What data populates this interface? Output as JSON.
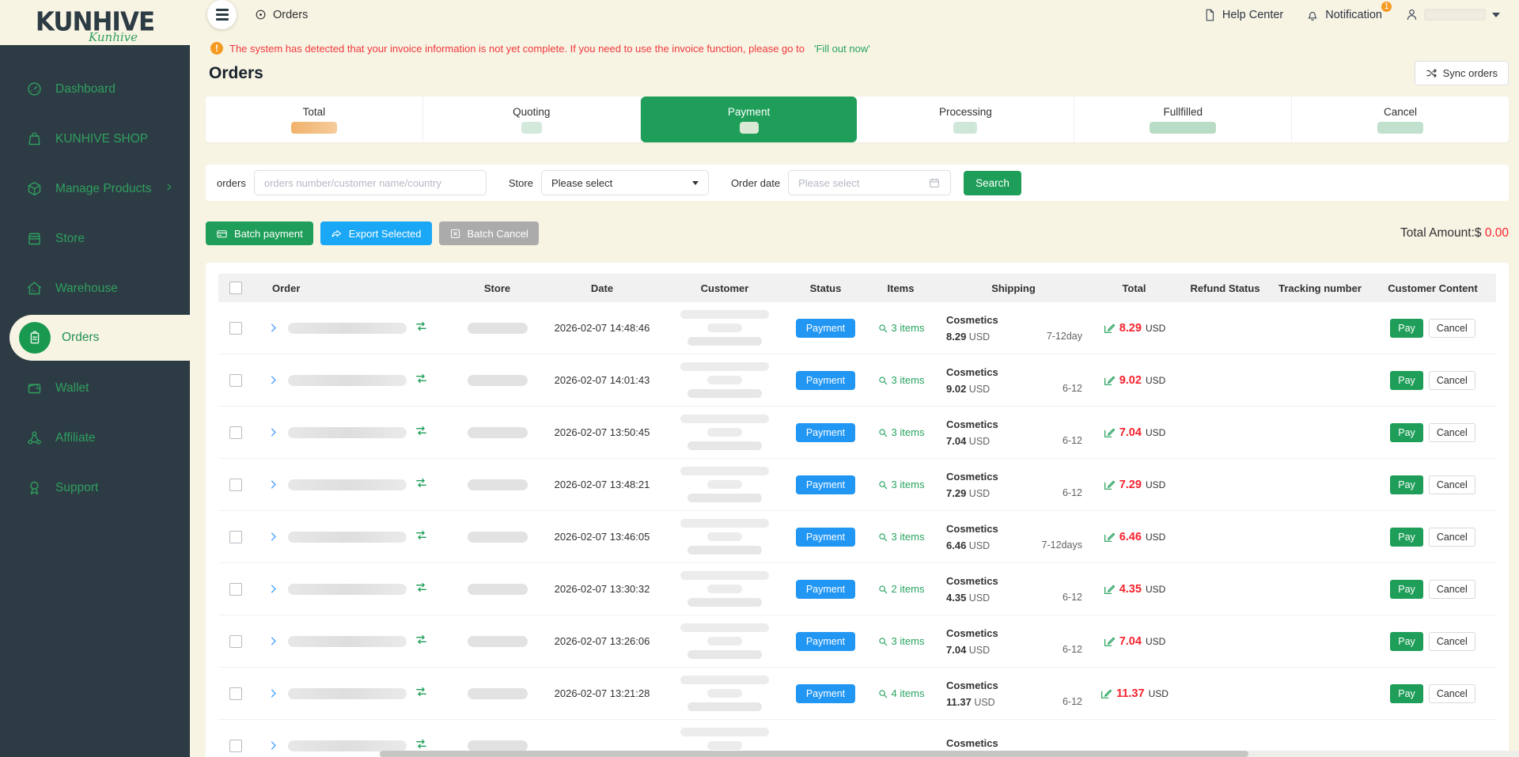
{
  "brand": {
    "logo_text": "KUNHIVE",
    "logo_script": "Kunhive"
  },
  "topbar": {
    "breadcrumb": "Orders",
    "help_center": "Help Center",
    "notification": "Notification",
    "notification_count": "1"
  },
  "sidebar": {
    "items": [
      {
        "label": "Dashboard",
        "icon": "dashboard-gauge-icon",
        "active": false
      },
      {
        "label": "KUNHIVE SHOP",
        "icon": "shop-bag-icon",
        "active": false
      },
      {
        "label": "Manage Products",
        "icon": "product-box-icon",
        "active": false,
        "has_chevron": true
      },
      {
        "label": "Store",
        "icon": "storefront-icon",
        "active": false
      },
      {
        "label": "Warehouse",
        "icon": "warehouse-icon",
        "active": false
      },
      {
        "label": "Orders",
        "icon": "orders-clipboard-icon",
        "active": true
      },
      {
        "label": "Wallet",
        "icon": "wallet-icon",
        "active": false
      },
      {
        "label": "Affiliate",
        "icon": "affiliate-network-icon",
        "active": false
      },
      {
        "label": "Support",
        "icon": "support-badge-icon",
        "active": false
      }
    ]
  },
  "notice": {
    "text": "The system has detected that your invoice information is not yet complete. If you need to use the invoice function, please go to",
    "link": "'Fill out now'"
  },
  "page": {
    "title": "Orders",
    "sync_button": "Sync orders"
  },
  "tabs": [
    {
      "label": "Total",
      "active": false,
      "count_redacted": true,
      "count_color": "#f0b26b"
    },
    {
      "label": "Quoting",
      "active": false,
      "count_redacted": true,
      "count_color": "#d3e9dc"
    },
    {
      "label": "Payment",
      "active": true,
      "count_redacted": true,
      "count_color": "#d9e9d5"
    },
    {
      "label": "Processing",
      "active": false,
      "count_redacted": true,
      "count_color": "#cfe7d9"
    },
    {
      "label": "Fullfilled",
      "active": false,
      "count_redacted": true,
      "count_color": "#b9dcc6"
    },
    {
      "label": "Cancel",
      "active": false,
      "count_redacted": true,
      "count_color": "#c2e0ce"
    }
  ],
  "filters": {
    "orders_label": "orders",
    "orders_placeholder": "orders number/customer name/country",
    "store_label": "Store",
    "store_value": "Please select",
    "date_label": "Order date",
    "date_placeholder": "Please select",
    "search_button": "Search"
  },
  "actions": {
    "batch_payment": "Batch payment",
    "export_selected": "Export Selected",
    "batch_cancel": "Batch Cancel",
    "total_amount_label": "Total Amount:$",
    "total_amount_value": "0.00"
  },
  "table": {
    "columns": [
      "Order",
      "Store",
      "Date",
      "Customer",
      "Status",
      "Items",
      "Shipping",
      "Total",
      "Refund Status",
      "Tracking number",
      "Customer Content"
    ],
    "row_actions": {
      "pay": "Pay",
      "cancel": "Cancel"
    },
    "rows": [
      {
        "date": "2026-02-07 14:48:46",
        "status": "Payment",
        "items": "3 items",
        "ship_name": "Cosmetics",
        "ship_price": "8.29",
        "ship_cur": "USD",
        "ship_eta": "7-12day",
        "total": "8.29",
        "total_cur": "USD"
      },
      {
        "date": "2026-02-07 14:01:43",
        "status": "Payment",
        "items": "3 items",
        "ship_name": "Cosmetics",
        "ship_price": "9.02",
        "ship_cur": "USD",
        "ship_eta": "6-12",
        "total": "9.02",
        "total_cur": "USD"
      },
      {
        "date": "2026-02-07 13:50:45",
        "status": "Payment",
        "items": "3 items",
        "ship_name": "Cosmetics",
        "ship_price": "7.04",
        "ship_cur": "USD",
        "ship_eta": "6-12",
        "total": "7.04",
        "total_cur": "USD"
      },
      {
        "date": "2026-02-07 13:48:21",
        "status": "Payment",
        "items": "3 items",
        "ship_name": "Cosmetics",
        "ship_price": "7.29",
        "ship_cur": "USD",
        "ship_eta": "6-12",
        "total": "7.29",
        "total_cur": "USD"
      },
      {
        "date": "2026-02-07 13:46:05",
        "status": "Payment",
        "items": "3 items",
        "ship_name": "Cosmetics",
        "ship_price": "6.46",
        "ship_cur": "USD",
        "ship_eta": "7-12days",
        "total": "6.46",
        "total_cur": "USD"
      },
      {
        "date": "2026-02-07 13:30:32",
        "status": "Payment",
        "items": "2 items",
        "ship_name": "Cosmetics",
        "ship_price": "4.35",
        "ship_cur": "USD",
        "ship_eta": "6-12",
        "total": "4.35",
        "total_cur": "USD"
      },
      {
        "date": "2026-02-07 13:26:06",
        "status": "Payment",
        "items": "3 items",
        "ship_name": "Cosmetics",
        "ship_price": "7.04",
        "ship_cur": "USD",
        "ship_eta": "6-12",
        "total": "7.04",
        "total_cur": "USD"
      },
      {
        "date": "2026-02-07 13:21:28",
        "status": "Payment",
        "items": "4 items",
        "ship_name": "Cosmetics",
        "ship_price": "11.37",
        "ship_cur": "USD",
        "ship_eta": "6-12",
        "total": "11.37",
        "total_cur": "USD"
      },
      {
        "date": "",
        "status": "",
        "items": "",
        "ship_name": "Cosmetics",
        "ship_price": "",
        "ship_cur": "",
        "ship_eta": "",
        "total": "",
        "total_cur": ""
      }
    ]
  },
  "colors": {
    "sidebar_bg": "#2d3c44",
    "page_bg": "#f8f4e4",
    "accent_green": "#1e9e58",
    "sidebar_green": "#2f9e5f",
    "status_blue": "#2196f3",
    "export_blue": "#1aa7f5",
    "cancel_gray": "#ababab",
    "price_red": "#f5222d",
    "warn_orange": "#f59a23",
    "notice_red": "#f0373b"
  }
}
